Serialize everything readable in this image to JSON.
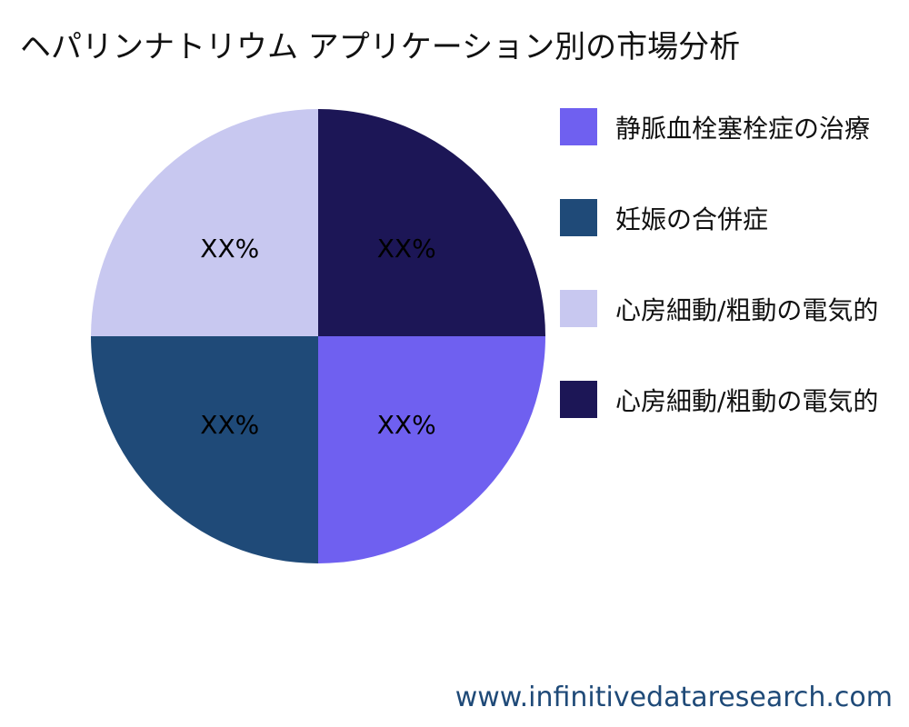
{
  "title": "ヘパリンナトリウム アプリケーション別の市場分析",
  "chart_data": {
    "type": "pie",
    "title": "ヘパリンナトリウム アプリケーション別の市場分析",
    "start_angle": "3 o'clock, clockwise",
    "legend_position": "right",
    "slices": [
      {
        "name": "静脈血栓塞栓症の治療",
        "value": 25,
        "label": "XX%",
        "color": "#6f60f0"
      },
      {
        "name": "妊娠の合併症",
        "value": 25,
        "label": "XX%",
        "color": "#1f4a78"
      },
      {
        "name": "心房細動/粗動の電気的",
        "value": 25,
        "label": "XX%",
        "color": "#c8c8f0"
      },
      {
        "name": "心房細動/粗動の電気的",
        "value": 25,
        "label": "XX%",
        "color": "#1c1656"
      }
    ]
  },
  "watermark": "www.infinitivedataresearch.com"
}
